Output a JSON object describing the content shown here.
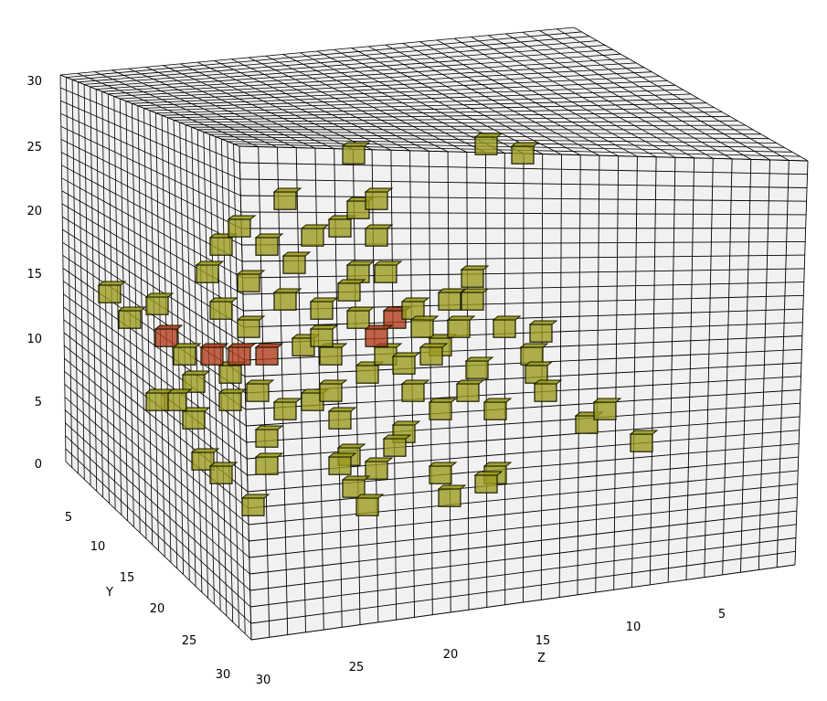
{
  "chart_data": {
    "type": "3d-voxel",
    "xlabel": "Z",
    "ylabel": "Y",
    "zlabel": "",
    "x_ticks": [
      "5",
      "10",
      "15",
      "20",
      "25",
      "30"
    ],
    "y_ticks": [
      "5",
      "10",
      "15",
      "20",
      "25",
      "30"
    ],
    "z_ticks": [
      "0",
      "5",
      "10",
      "15",
      "20",
      "25",
      "30"
    ],
    "xlim": [
      0,
      30
    ],
    "ylim": [
      0,
      30
    ],
    "zlim": [
      0,
      30
    ],
    "grid": true,
    "colors": {
      "frame_face": "#e6e6e6",
      "frame_edge": "#000000",
      "voxel_yellow": "#9a9a1e",
      "voxel_red": "#b03a1a"
    },
    "red_voxel_count": 6,
    "note_sections": [
      "dense cluster at high Y (near side)",
      "sparse scatter toward low Y"
    ]
  }
}
